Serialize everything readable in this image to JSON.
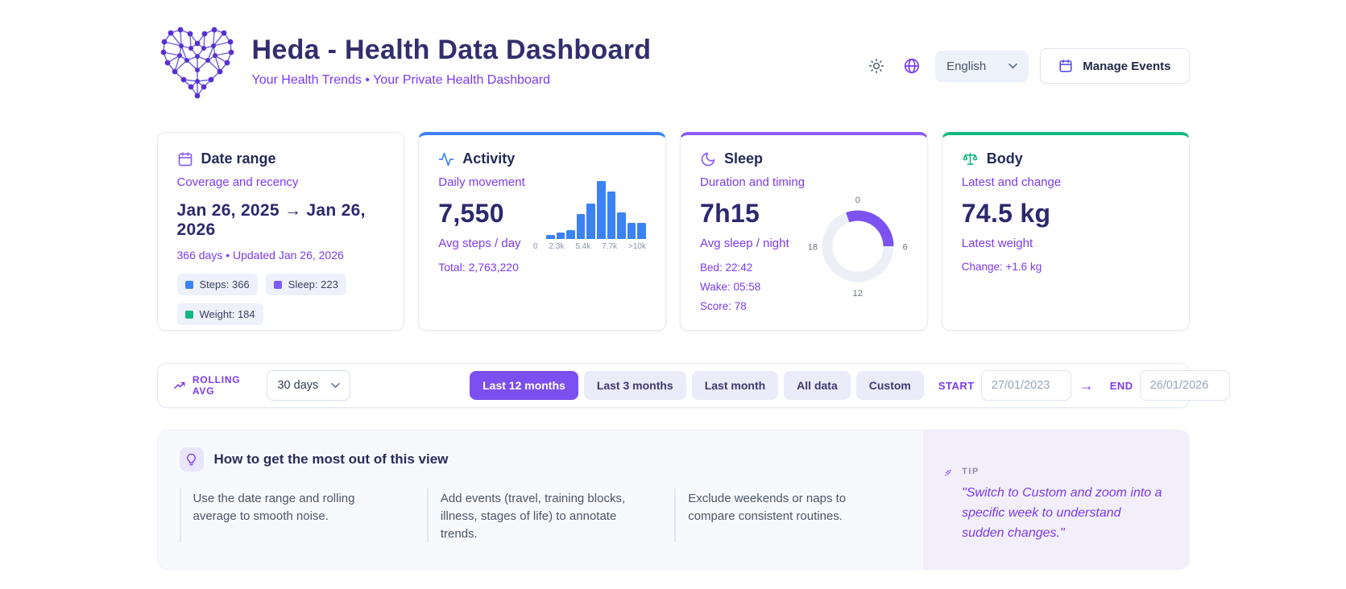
{
  "header": {
    "title": "Heda - Health Data Dashboard",
    "subtitle": "Your Health Trends • Your Private Health Dashboard",
    "language": "English",
    "manage_events_label": "Manage Events"
  },
  "cards": {
    "date_range": {
      "title": "Date range",
      "subtitle": "Coverage and recency",
      "value": "Jan 26, 2025 → Jan 26, 2026",
      "meta": "366 days • Updated Jan 26, 2026",
      "badges": [
        {
          "label": "Steps: 366",
          "color": "#3b82f6"
        },
        {
          "label": "Sleep: 223",
          "color": "#7c5cfa"
        },
        {
          "label": "Weight: 184",
          "color": "#10b981"
        }
      ]
    },
    "activity": {
      "title": "Activity",
      "subtitle": "Daily movement",
      "value": "7,550",
      "value_label": "Avg steps / day",
      "total": "Total: 2,763,220",
      "accent": "#3b82f6"
    },
    "sleep": {
      "title": "Sleep",
      "subtitle": "Duration and timing",
      "value": "7h15",
      "value_label": "Avg sleep / night",
      "details": [
        "Bed: 22:42",
        "Wake: 05:58",
        "Score: 78"
      ],
      "accent": "#8b5cf6"
    },
    "body": {
      "title": "Body",
      "subtitle": "Latest and change",
      "value": "74.5 kg",
      "value_label": "Latest weight",
      "change": "Change: +1.6 kg",
      "accent": "#10b981"
    }
  },
  "chart_data": [
    {
      "type": "bar",
      "context": "activity-steps-histogram",
      "title": "Distribution of daily steps",
      "x_tick_labels": [
        "0",
        "2.3k",
        "5.4k",
        "7.7k",
        ">10k"
      ],
      "bar_heights_pct_of_max": [
        7,
        11,
        15,
        44,
        62,
        100,
        82,
        46,
        28,
        28
      ],
      "bar_color": "#3b82f6",
      "note": "y-axis unlabeled; bar heights are relative day-count frequencies"
    },
    {
      "type": "donut",
      "context": "sleep-clock",
      "clock_tick_labels": [
        "0",
        "6",
        "12",
        "18"
      ],
      "arc_start_hour": 22.7,
      "arc_end_hour": 5.97,
      "arc_color": "#7c52f0",
      "track_color": "#ecf0f6",
      "represents": "sleep window from Bed 22:42 to Wake 05:58 on a 24h clock"
    }
  ],
  "filter_bar": {
    "rolling_avg_label": "ROLLING AVG",
    "rolling_avg_value": "30 days",
    "range_buttons": [
      {
        "label": "Last 12 months",
        "active": true
      },
      {
        "label": "Last 3 months",
        "active": false
      },
      {
        "label": "Last month",
        "active": false
      },
      {
        "label": "All data",
        "active": false
      },
      {
        "label": "Custom",
        "active": false
      }
    ],
    "start_label": "START",
    "start_value": "27/01/2023",
    "end_label": "END",
    "end_value": "26/01/2026"
  },
  "info": {
    "heading": "How to get the most out of this view",
    "tips": [
      "Use the date range and rolling average to smooth noise.",
      "Add events (travel, training blocks, illness, stages of life) to annotate trends.",
      "Exclude weekends or naps to compare consistent routines."
    ],
    "tip_card": {
      "label": "TIP",
      "quote": "\"Switch to Custom and zoom into a specific week to understand sudden changes.\""
    }
  }
}
